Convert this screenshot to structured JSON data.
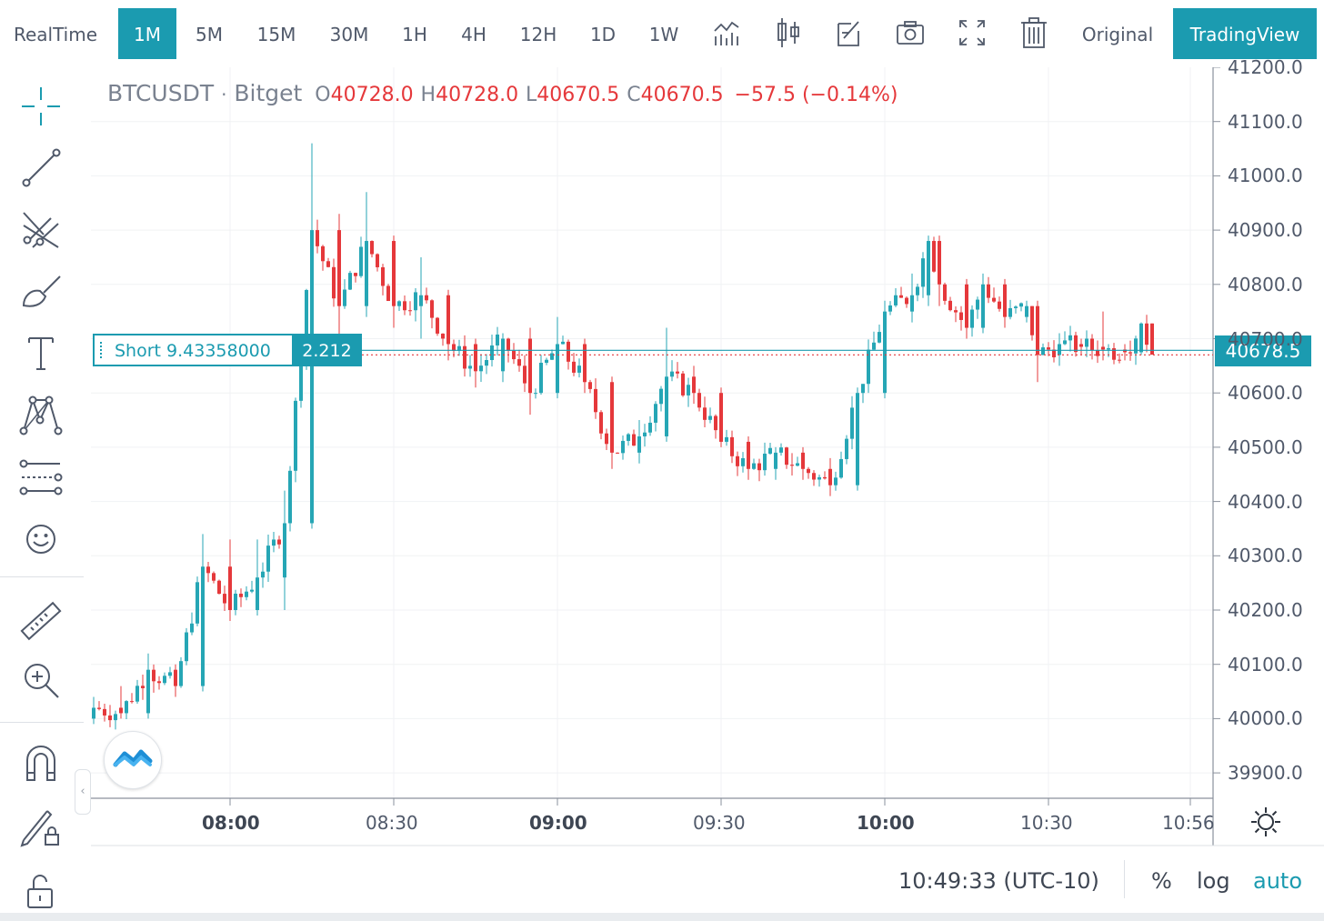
{
  "toolbar": {
    "timeframes": [
      {
        "label": "RealTime",
        "active": false
      },
      {
        "label": "1M",
        "active": true
      },
      {
        "label": "5M",
        "active": false
      },
      {
        "label": "15M",
        "active": false
      },
      {
        "label": "30M",
        "active": false
      },
      {
        "label": "1H",
        "active": false
      },
      {
        "label": "4H",
        "active": false
      },
      {
        "label": "12H",
        "active": false
      },
      {
        "label": "1D",
        "active": false
      },
      {
        "label": "1W",
        "active": false
      }
    ],
    "icons": [
      "indicators-icon",
      "candle-type-icon",
      "edit-icon",
      "camera-icon",
      "fullscreen-icon",
      "trash-icon"
    ],
    "original_label": "Original",
    "tradingview_label": "TradingView"
  },
  "sidebar": {
    "icons": [
      "crosshair-icon",
      "trend-line-icon",
      "pitchfork-icon",
      "brush-icon",
      "text-icon",
      "pattern-icon",
      "prediction-icon",
      "emoji-icon",
      "ruler-icon",
      "zoom-in-icon",
      "magnet-icon",
      "lock-drawing-icon",
      "unlock-icon"
    ]
  },
  "legend": {
    "symbol": "BTCUSDT",
    "sep": "·",
    "exchange": "Bitget",
    "o_label": "O",
    "o_value": "40728.0",
    "h_label": "H",
    "h_value": "40728.0",
    "l_label": "L",
    "l_value": "40670.5",
    "c_label": "C",
    "c_value": "40670.5",
    "change": "−57.5 (−0.14%)"
  },
  "position": {
    "label": "Short 9.43358000",
    "value": "2.212",
    "price": 40678.5
  },
  "last_price_label": "40678.5",
  "status": {
    "clock": "10:49:33 (UTC-10)",
    "percent": "%",
    "log": "log",
    "auto": "auto",
    "auto_active": true
  },
  "colors": {
    "accent": "#1b9bb0",
    "up": "#26a6b5",
    "down": "#e5383b",
    "grid": "#f0f2f4"
  },
  "chart_data": {
    "type": "candlestick",
    "symbol": "BTCUSDT",
    "ylim": [
      39850,
      41200
    ],
    "y_ticks": [
      "41200.0",
      "41100.0",
      "41000.0",
      "40900.0",
      "40800.0",
      "40700.0",
      "40600.0",
      "40500.0",
      "40400.0",
      "40300.0",
      "40200.0",
      "40100.0",
      "40000.0",
      "39900.0"
    ],
    "x_ticks": [
      {
        "label": "08:00",
        "bold": true
      },
      {
        "label": "08:30",
        "bold": false
      },
      {
        "label": "09:00",
        "bold": true
      },
      {
        "label": "09:30",
        "bold": false
      },
      {
        "label": "10:00",
        "bold": true
      },
      {
        "label": "10:30",
        "bold": false
      },
      {
        "label": "10:56",
        "bold": false
      }
    ],
    "grid": true,
    "candles_approx": [
      {
        "t": "07:35",
        "o": 40000,
        "h": 40040,
        "l": 39990,
        "c": 40020
      },
      {
        "t": "07:40",
        "o": 40020,
        "h": 40060,
        "l": 40000,
        "c": 40010
      },
      {
        "t": "07:45",
        "o": 40010,
        "h": 40120,
        "l": 40000,
        "c": 40090
      },
      {
        "t": "07:50",
        "o": 40090,
        "h": 40100,
        "l": 40040,
        "c": 40060
      },
      {
        "t": "07:55",
        "o": 40060,
        "h": 40340,
        "l": 40050,
        "c": 40280
      },
      {
        "t": "08:00",
        "o": 40280,
        "h": 40330,
        "l": 40180,
        "c": 40200
      },
      {
        "t": "08:05",
        "o": 40200,
        "h": 40330,
        "l": 40190,
        "c": 40260
      },
      {
        "t": "08:10",
        "o": 40260,
        "h": 40420,
        "l": 40200,
        "c": 40360
      },
      {
        "t": "08:15",
        "o": 40360,
        "h": 41060,
        "l": 40350,
        "c": 40900
      },
      {
        "t": "08:20",
        "o": 40900,
        "h": 40930,
        "l": 40700,
        "c": 40760
      },
      {
        "t": "08:25",
        "o": 40760,
        "h": 40970,
        "l": 40740,
        "c": 40880
      },
      {
        "t": "08:30",
        "o": 40880,
        "h": 40890,
        "l": 40720,
        "c": 40760
      },
      {
        "t": "08:35",
        "o": 40760,
        "h": 40850,
        "l": 40700,
        "c": 40780
      },
      {
        "t": "08:40",
        "o": 40780,
        "h": 40790,
        "l": 40660,
        "c": 40690
      },
      {
        "t": "08:45",
        "o": 40690,
        "h": 40700,
        "l": 40610,
        "c": 40640
      },
      {
        "t": "08:50",
        "o": 40640,
        "h": 40710,
        "l": 40620,
        "c": 40700
      },
      {
        "t": "08:55",
        "o": 40700,
        "h": 40720,
        "l": 40560,
        "c": 40600
      },
      {
        "t": "09:00",
        "o": 40600,
        "h": 40740,
        "l": 40590,
        "c": 40690
      },
      {
        "t": "09:05",
        "o": 40690,
        "h": 40700,
        "l": 40600,
        "c": 40620
      },
      {
        "t": "09:10",
        "o": 40620,
        "h": 40630,
        "l": 40460,
        "c": 40490
      },
      {
        "t": "09:15",
        "o": 40490,
        "h": 40550,
        "l": 40470,
        "c": 40520
      },
      {
        "t": "09:20",
        "o": 40520,
        "h": 40720,
        "l": 40510,
        "c": 40630
      },
      {
        "t": "09:25",
        "o": 40630,
        "h": 40650,
        "l": 40580,
        "c": 40600
      },
      {
        "t": "09:30",
        "o": 40600,
        "h": 40610,
        "l": 40500,
        "c": 40510
      },
      {
        "t": "09:35",
        "o": 40510,
        "h": 40520,
        "l": 40440,
        "c": 40460
      },
      {
        "t": "09:40",
        "o": 40460,
        "h": 40500,
        "l": 40440,
        "c": 40490
      },
      {
        "t": "09:45",
        "o": 40490,
        "h": 40500,
        "l": 40440,
        "c": 40460
      },
      {
        "t": "09:50",
        "o": 40460,
        "h": 40480,
        "l": 40410,
        "c": 40430
      },
      {
        "t": "09:55",
        "o": 40430,
        "h": 40610,
        "l": 40420,
        "c": 40600
      },
      {
        "t": "10:00",
        "o": 40600,
        "h": 40770,
        "l": 40590,
        "c": 40750
      },
      {
        "t": "10:05",
        "o": 40750,
        "h": 40820,
        "l": 40730,
        "c": 40780
      },
      {
        "t": "10:08",
        "o": 40780,
        "h": 40890,
        "l": 40760,
        "c": 40880
      },
      {
        "t": "10:10",
        "o": 40880,
        "h": 40890,
        "l": 40760,
        "c": 40800
      },
      {
        "t": "10:15",
        "o": 40800,
        "h": 40810,
        "l": 40700,
        "c": 40720
      },
      {
        "t": "10:18",
        "o": 40720,
        "h": 40820,
        "l": 40710,
        "c": 40800
      },
      {
        "t": "10:22",
        "o": 40800,
        "h": 40810,
        "l": 40720,
        "c": 40740
      },
      {
        "t": "10:26",
        "o": 40740,
        "h": 40770,
        "l": 40730,
        "c": 40760
      },
      {
        "t": "10:28",
        "o": 40760,
        "h": 40770,
        "l": 40620,
        "c": 40670
      },
      {
        "t": "10:32",
        "o": 40670,
        "h": 40710,
        "l": 40650,
        "c": 40690
      },
      {
        "t": "10:36",
        "o": 40690,
        "h": 40700,
        "l": 40670,
        "c": 40685
      },
      {
        "t": "10:40",
        "o": 40685,
        "h": 40750,
        "l": 40660,
        "c": 40680
      },
      {
        "t": "10:44",
        "o": 40680,
        "h": 40690,
        "l": 40660,
        "c": 40675
      },
      {
        "t": "10:47",
        "o": 40675,
        "h": 40730,
        "l": 40670,
        "c": 40728
      },
      {
        "t": "10:49",
        "o": 40728,
        "h": 40728,
        "l": 40670.5,
        "c": 40670.5
      }
    ]
  }
}
